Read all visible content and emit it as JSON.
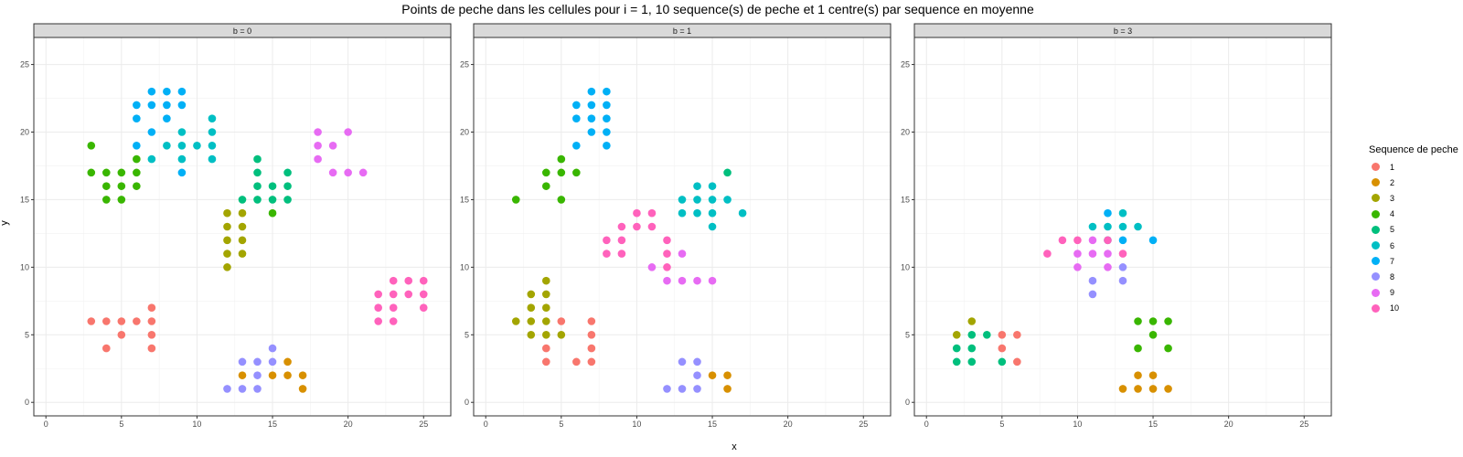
{
  "chart_data": {
    "type": "scatter",
    "title": "Points de peche dans les cellules pour i = 1, 10 sequence(s) de peche et 1 centre(s) par sequence en moyenne",
    "xlabel": "x",
    "ylabel": "y",
    "xlim": [
      -0.8,
      26.8
    ],
    "ylim": [
      -1,
      27
    ],
    "x_ticks": [
      0,
      5,
      10,
      15,
      20,
      25
    ],
    "y_ticks": [
      0,
      5,
      10,
      15,
      20,
      25
    ],
    "grid": true,
    "legend": {
      "title": "Sequence de peche",
      "placement": "right",
      "entries": [
        "1",
        "2",
        "3",
        "4",
        "5",
        "6",
        "7",
        "8",
        "9",
        "10"
      ]
    },
    "colors": {
      "1": "#F8766D",
      "2": "#D89000",
      "3": "#A3A500",
      "4": "#39B600",
      "5": "#00BF7D",
      "6": "#00BFC4",
      "7": "#00B0F6",
      "8": "#9590FF",
      "9": "#E76BF3",
      "10": "#FF62BC"
    },
    "panels": [
      {
        "label": "b = 0",
        "series": [
          {
            "name": "1",
            "points": [
              [
                3,
                6
              ],
              [
                4,
                6
              ],
              [
                4,
                4
              ],
              [
                5,
                6
              ],
              [
                5,
                5
              ],
              [
                6,
                6
              ],
              [
                7,
                7
              ],
              [
                7,
                6
              ],
              [
                7,
                5
              ],
              [
                7,
                4
              ]
            ]
          },
          {
            "name": "2",
            "points": [
              [
                13,
                2
              ],
              [
                15,
                2
              ],
              [
                16,
                3
              ],
              [
                16,
                2
              ],
              [
                17,
                2
              ],
              [
                17,
                1
              ]
            ]
          },
          {
            "name": "3",
            "points": [
              [
                12,
                14
              ],
              [
                12,
                13
              ],
              [
                12,
                12
              ],
              [
                12,
                11
              ],
              [
                12,
                10
              ],
              [
                13,
                14
              ],
              [
                13,
                13
              ],
              [
                13,
                12
              ],
              [
                13,
                11
              ]
            ]
          },
          {
            "name": "4",
            "points": [
              [
                3,
                19
              ],
              [
                3,
                17
              ],
              [
                4,
                17
              ],
              [
                4,
                16
              ],
              [
                4,
                15
              ],
              [
                5,
                17
              ],
              [
                5,
                16
              ],
              [
                5,
                15
              ],
              [
                6,
                18
              ],
              [
                6,
                17
              ],
              [
                6,
                16
              ],
              [
                15,
                14
              ]
            ]
          },
          {
            "name": "5",
            "points": [
              [
                13,
                15
              ],
              [
                14,
                18
              ],
              [
                14,
                17
              ],
              [
                14,
                16
              ],
              [
                14,
                15
              ],
              [
                15,
                16
              ],
              [
                15,
                15
              ],
              [
                16,
                17
              ],
              [
                16,
                16
              ],
              [
                16,
                15
              ]
            ]
          },
          {
            "name": "6",
            "points": [
              [
                7,
                18
              ],
              [
                8,
                19
              ],
              [
                9,
                20
              ],
              [
                9,
                19
              ],
              [
                9,
                18
              ],
              [
                10,
                19
              ],
              [
                11,
                21
              ],
              [
                11,
                20
              ],
              [
                11,
                19
              ],
              [
                11,
                18
              ]
            ]
          },
          {
            "name": "7",
            "points": [
              [
                6,
                22
              ],
              [
                6,
                21
              ],
              [
                6,
                19
              ],
              [
                7,
                23
              ],
              [
                7,
                22
              ],
              [
                7,
                20
              ],
              [
                8,
                23
              ],
              [
                8,
                22
              ],
              [
                8,
                21
              ],
              [
                9,
                23
              ],
              [
                9,
                22
              ],
              [
                9,
                17
              ]
            ]
          },
          {
            "name": "8",
            "points": [
              [
                12,
                1
              ],
              [
                13,
                3
              ],
              [
                13,
                1
              ],
              [
                14,
                3
              ],
              [
                14,
                2
              ],
              [
                14,
                1
              ],
              [
                15,
                4
              ],
              [
                15,
                3
              ]
            ]
          },
          {
            "name": "9",
            "points": [
              [
                18,
                20
              ],
              [
                18,
                19
              ],
              [
                18,
                18
              ],
              [
                19,
                19
              ],
              [
                19,
                17
              ],
              [
                20,
                20
              ],
              [
                20,
                17
              ],
              [
                21,
                17
              ]
            ]
          },
          {
            "name": "10",
            "points": [
              [
                22,
                8
              ],
              [
                22,
                7
              ],
              [
                22,
                6
              ],
              [
                23,
                9
              ],
              [
                23,
                8
              ],
              [
                23,
                7
              ],
              [
                23,
                6
              ],
              [
                24,
                9
              ],
              [
                24,
                8
              ],
              [
                25,
                9
              ],
              [
                25,
                8
              ],
              [
                25,
                7
              ]
            ]
          }
        ]
      },
      {
        "label": "b = 1",
        "series": [
          {
            "name": "1",
            "points": [
              [
                4,
                4
              ],
              [
                4,
                3
              ],
              [
                5,
                6
              ],
              [
                6,
                3
              ],
              [
                7,
                6
              ],
              [
                7,
                5
              ],
              [
                7,
                4
              ],
              [
                7,
                3
              ]
            ]
          },
          {
            "name": "2",
            "points": [
              [
                15,
                2
              ],
              [
                16,
                2
              ],
              [
                16,
                1
              ]
            ]
          },
          {
            "name": "3",
            "points": [
              [
                2,
                6
              ],
              [
                3,
                8
              ],
              [
                3,
                7
              ],
              [
                3,
                6
              ],
              [
                3,
                5
              ],
              [
                4,
                9
              ],
              [
                4,
                8
              ],
              [
                4,
                7
              ],
              [
                4,
                6
              ],
              [
                4,
                5
              ],
              [
                5,
                5
              ]
            ]
          },
          {
            "name": "4",
            "points": [
              [
                2,
                15
              ],
              [
                4,
                17
              ],
              [
                4,
                16
              ],
              [
                5,
                18
              ],
              [
                5,
                17
              ],
              [
                5,
                15
              ],
              [
                6,
                17
              ]
            ]
          },
          {
            "name": "5",
            "points": [
              [
                16,
                17
              ]
            ]
          },
          {
            "name": "6",
            "points": [
              [
                13,
                15
              ],
              [
                13,
                14
              ],
              [
                14,
                16
              ],
              [
                14,
                15
              ],
              [
                14,
                14
              ],
              [
                15,
                16
              ],
              [
                15,
                15
              ],
              [
                15,
                14
              ],
              [
                15,
                13
              ],
              [
                16,
                15
              ],
              [
                17,
                14
              ]
            ]
          },
          {
            "name": "7",
            "points": [
              [
                6,
                22
              ],
              [
                6,
                21
              ],
              [
                6,
                19
              ],
              [
                7,
                23
              ],
              [
                7,
                22
              ],
              [
                7,
                21
              ],
              [
                7,
                20
              ],
              [
                8,
                23
              ],
              [
                8,
                22
              ],
              [
                8,
                21
              ],
              [
                8,
                20
              ],
              [
                8,
                19
              ]
            ]
          },
          {
            "name": "8",
            "points": [
              [
                12,
                1
              ],
              [
                13,
                3
              ],
              [
                13,
                1
              ],
              [
                14,
                3
              ],
              [
                14,
                2
              ],
              [
                14,
                1
              ]
            ]
          },
          {
            "name": "9",
            "points": [
              [
                11,
                10
              ],
              [
                12,
                9
              ],
              [
                13,
                11
              ],
              [
                13,
                9
              ],
              [
                14,
                9
              ],
              [
                15,
                9
              ]
            ]
          },
          {
            "name": "10",
            "points": [
              [
                8,
                12
              ],
              [
                8,
                11
              ],
              [
                9,
                13
              ],
              [
                9,
                12
              ],
              [
                9,
                11
              ],
              [
                10,
                14
              ],
              [
                10,
                13
              ],
              [
                11,
                14
              ],
              [
                11,
                13
              ],
              [
                12,
                12
              ],
              [
                12,
                11
              ],
              [
                12,
                10
              ]
            ]
          }
        ]
      },
      {
        "label": "b = 3",
        "series": [
          {
            "name": "1",
            "points": [
              [
                5,
                5
              ],
              [
                5,
                4
              ],
              [
                6,
                5
              ],
              [
                6,
                3
              ]
            ]
          },
          {
            "name": "2",
            "points": [
              [
                13,
                1
              ],
              [
                14,
                2
              ],
              [
                14,
                1
              ],
              [
                15,
                2
              ],
              [
                15,
                1
              ],
              [
                16,
                1
              ]
            ]
          },
          {
            "name": "3",
            "points": [
              [
                2,
                5
              ],
              [
                3,
                6
              ]
            ]
          },
          {
            "name": "4",
            "points": [
              [
                14,
                6
              ],
              [
                14,
                4
              ],
              [
                15,
                6
              ],
              [
                15,
                5
              ],
              [
                16,
                6
              ],
              [
                16,
                4
              ]
            ]
          },
          {
            "name": "5",
            "points": [
              [
                2,
                4
              ],
              [
                2,
                3
              ],
              [
                3,
                5
              ],
              [
                3,
                4
              ],
              [
                3,
                3
              ],
              [
                4,
                5
              ],
              [
                5,
                3
              ]
            ]
          },
          {
            "name": "6",
            "points": [
              [
                11,
                13
              ],
              [
                12,
                13
              ],
              [
                12,
                12
              ],
              [
                13,
                14
              ],
              [
                13,
                13
              ],
              [
                14,
                13
              ]
            ]
          },
          {
            "name": "7",
            "points": [
              [
                12,
                14
              ],
              [
                13,
                12
              ],
              [
                15,
                12
              ]
            ]
          },
          {
            "name": "8",
            "points": [
              [
                11,
                9
              ],
              [
                11,
                8
              ],
              [
                13,
                10
              ],
              [
                13,
                9
              ]
            ]
          },
          {
            "name": "9",
            "points": [
              [
                10,
                11
              ],
              [
                10,
                10
              ],
              [
                11,
                12
              ],
              [
                11,
                11
              ],
              [
                12,
                11
              ],
              [
                12,
                10
              ]
            ]
          },
          {
            "name": "10",
            "points": [
              [
                8,
                11
              ],
              [
                9,
                12
              ],
              [
                10,
                12
              ],
              [
                12,
                12
              ],
              [
                13,
                11
              ]
            ]
          }
        ]
      }
    ]
  }
}
